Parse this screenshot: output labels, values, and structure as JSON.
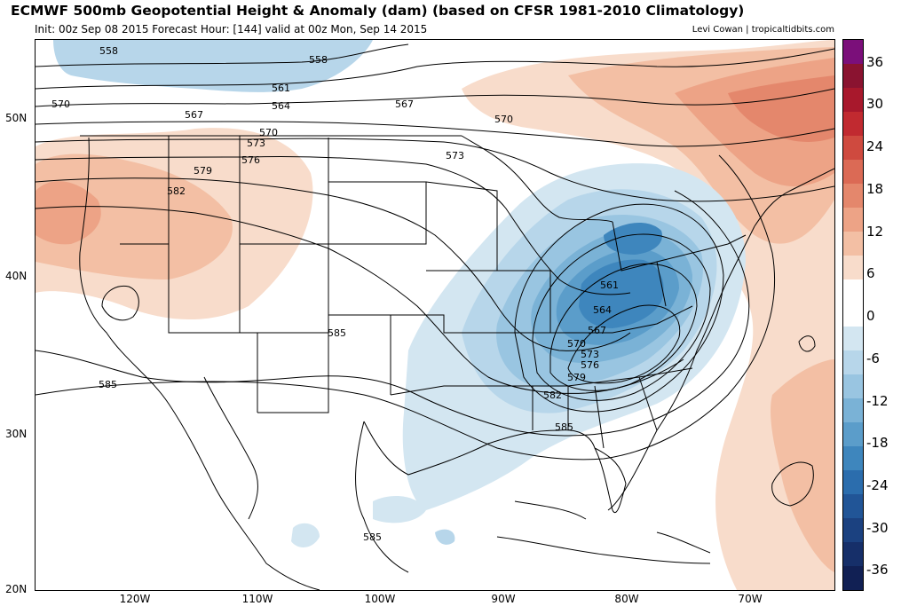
{
  "header": {
    "title": "ECMWF 500mb Geopotential Height & Anomaly (dam) (based on CFSR 1981-2010 Climatology)",
    "subtitle": "Init: 00z Sep 08 2015   Forecast Hour: [144]   valid at 00z Mon, Sep 14 2015",
    "credit": "Levi Cowan | tropicaltidbits.com"
  },
  "axes": {
    "lat_labels": [
      "50N",
      "40N",
      "30N",
      "20N"
    ],
    "lon_labels": [
      "120W",
      "110W",
      "100W",
      "90W",
      "80W",
      "70W"
    ]
  },
  "colorbar": {
    "labels": [
      "36",
      "30",
      "24",
      "18",
      "12",
      "6",
      "0",
      "-6",
      "-12",
      "-18",
      "-24",
      "-30",
      "-36"
    ],
    "colors": [
      "#7b0f7a",
      "#8a1330",
      "#a8182c",
      "#c12a30",
      "#cf4a3f",
      "#db6a55",
      "#e4876c",
      "#eda386",
      "#f3bfa4",
      "#f8dccb",
      "#ffffff",
      "#ffffff",
      "#d3e6f1",
      "#b7d6ea",
      "#99c5e1",
      "#7ab2d6",
      "#5b9dca",
      "#3e86bd",
      "#2b6dad",
      "#215597",
      "#1b4180",
      "#162f69",
      "#112054"
    ]
  },
  "contours": {
    "height_labels": [
      "558",
      "558",
      "561",
      "564",
      "567",
      "567",
      "570",
      "570",
      "570",
      "573",
      "573",
      "576",
      "579",
      "582",
      "561",
      "564",
      "567",
      "570",
      "573",
      "576",
      "579",
      "582",
      "585",
      "585",
      "585",
      "585"
    ]
  }
}
